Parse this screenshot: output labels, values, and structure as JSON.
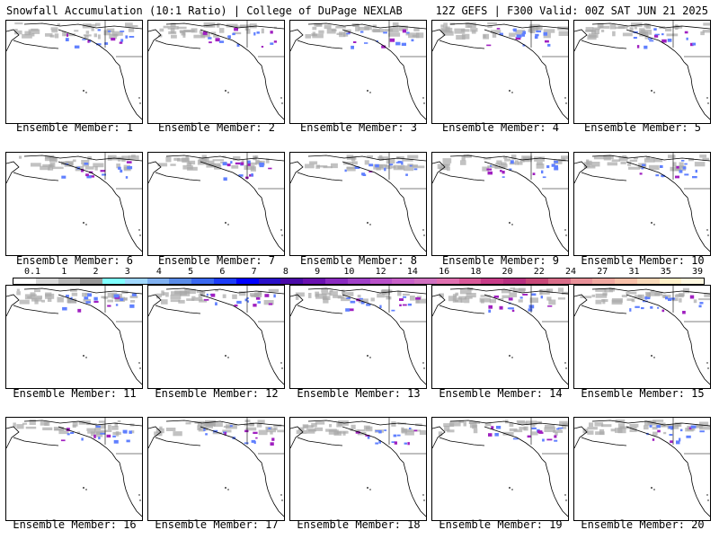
{
  "header": {
    "left": "Snowfall Accumulation (10:1 Ratio) | College of DuPage NEXLAB",
    "right": "12Z GEFS | F300 Valid: 00Z SAT JUN 21 2025"
  },
  "panels": [
    {
      "label": "Ensemble Member: 1"
    },
    {
      "label": "Ensemble Member: 2"
    },
    {
      "label": "Ensemble Member: 3"
    },
    {
      "label": "Ensemble Member: 4"
    },
    {
      "label": "Ensemble Member: 5"
    },
    {
      "label": "Ensemble Member: 6"
    },
    {
      "label": "Ensemble Member: 7"
    },
    {
      "label": "Ensemble Member: 8"
    },
    {
      "label": "Ensemble Member: 9"
    },
    {
      "label": "Ensemble Member: 10"
    },
    {
      "label": "Ensemble Member: 11"
    },
    {
      "label": "Ensemble Member: 12"
    },
    {
      "label": "Ensemble Member: 13"
    },
    {
      "label": "Ensemble Member: 14"
    },
    {
      "label": "Ensemble Member: 15"
    },
    {
      "label": "Ensemble Member: 16"
    },
    {
      "label": "Ensemble Member: 17"
    },
    {
      "label": "Ensemble Member: 18"
    },
    {
      "label": "Ensemble Member: 19"
    },
    {
      "label": "Ensemble Member: 20"
    }
  ],
  "colorbar": {
    "ticks": [
      "0.1",
      "1",
      "2",
      "3",
      "4",
      "5",
      "6",
      "7",
      "8",
      "9",
      "10",
      "12",
      "14",
      "16",
      "18",
      "20",
      "22",
      "24",
      "27",
      "31",
      "35",
      "39"
    ],
    "colors": [
      "#ffffff",
      "#d8d8d8",
      "#b8b8b8",
      "#989898",
      "#7fffff",
      "#a0d8ff",
      "#7fb0f0",
      "#5a8ce8",
      "#3a68f0",
      "#1c3cf8",
      "#0000ff",
      "#2a10c8",
      "#4a0aa8",
      "#6a10b0",
      "#8a2ac0",
      "#a040c8",
      "#b850c8",
      "#c860c8",
      "#d070c0",
      "#e070b0",
      "#d85898",
      "#c83c88",
      "#b83080",
      "#c84878",
      "#d86c88",
      "#e89098",
      "#f0a8a0",
      "#f8c0a8",
      "#f8d8b8",
      "#fff0c8",
      "#fff8e0"
    ]
  },
  "colors": {
    "snow_light": "#a8a8a8",
    "snow_med": "#6080ff",
    "snow_heavy": "#a020c0",
    "coast": "#000000"
  }
}
